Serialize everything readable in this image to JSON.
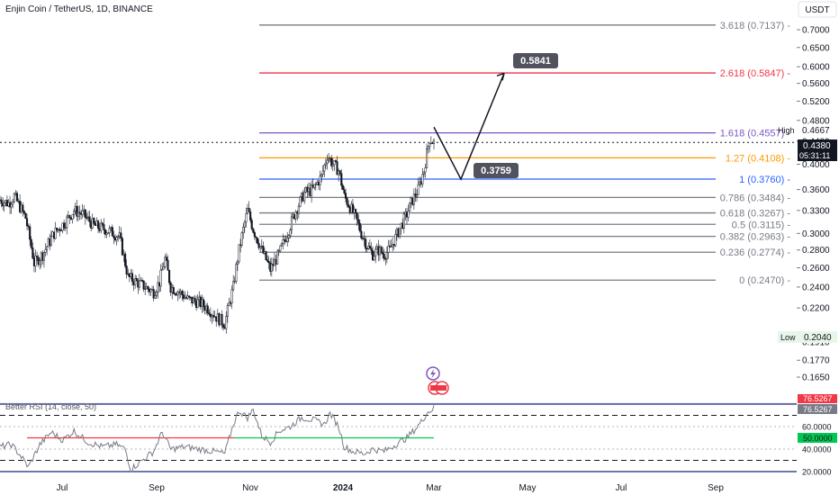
{
  "title": "Enjin Coin / TetherUS, 1D, BINANCE",
  "currency_button": "USDT",
  "price_axis": {
    "ticks": [
      "0.7000",
      "0.6500",
      "0.6000",
      "0.5600",
      "0.5200",
      "0.4800",
      "0.4400",
      "0.4000",
      "0.3600",
      "0.3300",
      "0.3000",
      "0.2800",
      "0.2600",
      "0.2400",
      "0.2200",
      "0.1910",
      "0.1770",
      "0.1650"
    ],
    "current_price": "0.4380",
    "countdown": "05:31:11",
    "high_label": "High",
    "high_value": "0.4667",
    "low_label": "Low",
    "low_value": "0.2040"
  },
  "time_axis": [
    "Jul",
    "Sep",
    "Nov",
    "2024",
    "Mar",
    "May",
    "Jul",
    "Sep"
  ],
  "fib_levels": [
    {
      "label": "3.618 (0.7137)",
      "price": 0.7137,
      "color": "#787b86"
    },
    {
      "label": "2.618 (0.5847)",
      "price": 0.5847,
      "color": "#f23645"
    },
    {
      "label": "1.618 (0.4557)",
      "price": 0.4557,
      "color": "#7e57c2"
    },
    {
      "label": "1.27 (0.4108)",
      "price": 0.4108,
      "color": "#ff9800"
    },
    {
      "label": "1 (0.3760)",
      "price": 0.376,
      "color": "#2962ff"
    },
    {
      "label": "0.786 (0.3484)",
      "price": 0.3484,
      "color": "#787b86"
    },
    {
      "label": "0.618 (0.3267)",
      "price": 0.3267,
      "color": "#787b86"
    },
    {
      "label": "0.5 (0.3115)",
      "price": 0.3115,
      "color": "#787b86"
    },
    {
      "label": "0.382 (0.2963)",
      "price": 0.2963,
      "color": "#787b86"
    },
    {
      "label": "0.236 (0.2774)",
      "price": 0.2774,
      "color": "#787b86"
    },
    {
      "label": "0 (0.2470)",
      "price": 0.247,
      "color": "#787b86"
    }
  ],
  "callouts": [
    {
      "label": "0.5841",
      "color": "#50535e"
    },
    {
      "label": "0.3759",
      "color": "#50535e"
    }
  ],
  "rsi": {
    "title": "Better RSI (14, close, 50)",
    "ticks": [
      "60.0000",
      "40.0000",
      "20.0000"
    ],
    "value_red": "76.5267",
    "value_gray": "76.5267",
    "value_green": "50.0000",
    "colors": {
      "line": "#787b86",
      "overbought": "#f23645",
      "midline": "#00c853",
      "bands": "#1a237e"
    }
  },
  "chart_data": {
    "type": "candlestick",
    "title": "Enjin Coin / TetherUS, 1D, BINANCE",
    "symbol": "ENJUSDT",
    "interval": "1D",
    "exchange": "BINANCE",
    "current_price": 0.438,
    "high": 0.4667,
    "low": 0.204,
    "price_scale": "log",
    "ohlc_path": [
      {
        "i": 0,
        "p": 0.345
      },
      {
        "i": 6,
        "p": 0.34
      },
      {
        "i": 10,
        "p": 0.35
      },
      {
        "i": 18,
        "p": 0.32
      },
      {
        "i": 24,
        "p": 0.265
      },
      {
        "i": 30,
        "p": 0.275
      },
      {
        "i": 38,
        "p": 0.3
      },
      {
        "i": 46,
        "p": 0.315
      },
      {
        "i": 52,
        "p": 0.33
      },
      {
        "i": 58,
        "p": 0.325
      },
      {
        "i": 66,
        "p": 0.31
      },
      {
        "i": 74,
        "p": 0.305
      },
      {
        "i": 80,
        "p": 0.3
      },
      {
        "i": 84,
        "p": 0.295
      },
      {
        "i": 90,
        "p": 0.25
      },
      {
        "i": 96,
        "p": 0.245
      },
      {
        "i": 102,
        "p": 0.24
      },
      {
        "i": 108,
        "p": 0.235
      },
      {
        "i": 112,
        "p": 0.245
      },
      {
        "i": 116,
        "p": 0.27
      },
      {
        "i": 120,
        "p": 0.24
      },
      {
        "i": 126,
        "p": 0.235
      },
      {
        "i": 132,
        "p": 0.228
      },
      {
        "i": 140,
        "p": 0.225
      },
      {
        "i": 146,
        "p": 0.22
      },
      {
        "i": 152,
        "p": 0.212
      },
      {
        "i": 158,
        "p": 0.206
      },
      {
        "i": 164,
        "p": 0.24
      },
      {
        "i": 168,
        "p": 0.28
      },
      {
        "i": 174,
        "p": 0.33
      },
      {
        "i": 178,
        "p": 0.305
      },
      {
        "i": 184,
        "p": 0.28
      },
      {
        "i": 190,
        "p": 0.258
      },
      {
        "i": 196,
        "p": 0.275
      },
      {
        "i": 202,
        "p": 0.3
      },
      {
        "i": 208,
        "p": 0.33
      },
      {
        "i": 214,
        "p": 0.355
      },
      {
        "i": 220,
        "p": 0.36
      },
      {
        "i": 226,
        "p": 0.38
      },
      {
        "i": 230,
        "p": 0.415
      },
      {
        "i": 234,
        "p": 0.4
      },
      {
        "i": 238,
        "p": 0.39
      },
      {
        "i": 242,
        "p": 0.35
      },
      {
        "i": 246,
        "p": 0.335
      },
      {
        "i": 250,
        "p": 0.32
      },
      {
        "i": 254,
        "p": 0.3
      },
      {
        "i": 258,
        "p": 0.285
      },
      {
        "i": 262,
        "p": 0.275
      },
      {
        "i": 266,
        "p": 0.28
      },
      {
        "i": 270,
        "p": 0.275
      },
      {
        "i": 274,
        "p": 0.28
      },
      {
        "i": 278,
        "p": 0.295
      },
      {
        "i": 282,
        "p": 0.31
      },
      {
        "i": 286,
        "p": 0.325
      },
      {
        "i": 290,
        "p": 0.345
      },
      {
        "i": 294,
        "p": 0.36
      },
      {
        "i": 298,
        "p": 0.39
      },
      {
        "i": 302,
        "p": 0.445
      },
      {
        "i": 305,
        "p": 0.438
      }
    ],
    "projection": [
      0.4667,
      0.3759,
      0.5841
    ],
    "rsi_path": [
      {
        "i": 0,
        "v": 42
      },
      {
        "i": 8,
        "v": 44
      },
      {
        "i": 14,
        "v": 35
      },
      {
        "i": 20,
        "v": 24
      },
      {
        "i": 28,
        "v": 44
      },
      {
        "i": 36,
        "v": 55
      },
      {
        "i": 44,
        "v": 48
      },
      {
        "i": 52,
        "v": 56
      },
      {
        "i": 62,
        "v": 46
      },
      {
        "i": 72,
        "v": 42
      },
      {
        "i": 82,
        "v": 44
      },
      {
        "i": 88,
        "v": 40
      },
      {
        "i": 92,
        "v": 22
      },
      {
        "i": 100,
        "v": 30
      },
      {
        "i": 108,
        "v": 38
      },
      {
        "i": 114,
        "v": 55
      },
      {
        "i": 120,
        "v": 40
      },
      {
        "i": 130,
        "v": 42
      },
      {
        "i": 140,
        "v": 40
      },
      {
        "i": 150,
        "v": 38
      },
      {
        "i": 158,
        "v": 36
      },
      {
        "i": 164,
        "v": 62
      },
      {
        "i": 168,
        "v": 74
      },
      {
        "i": 174,
        "v": 68
      },
      {
        "i": 178,
        "v": 75
      },
      {
        "i": 184,
        "v": 52
      },
      {
        "i": 190,
        "v": 46
      },
      {
        "i": 196,
        "v": 56
      },
      {
        "i": 204,
        "v": 60
      },
      {
        "i": 212,
        "v": 68
      },
      {
        "i": 220,
        "v": 66
      },
      {
        "i": 228,
        "v": 62
      },
      {
        "i": 232,
        "v": 72
      },
      {
        "i": 238,
        "v": 60
      },
      {
        "i": 242,
        "v": 42
      },
      {
        "i": 248,
        "v": 38
      },
      {
        "i": 256,
        "v": 36
      },
      {
        "i": 262,
        "v": 40
      },
      {
        "i": 270,
        "v": 38
      },
      {
        "i": 278,
        "v": 44
      },
      {
        "i": 286,
        "v": 50
      },
      {
        "i": 292,
        "v": 58
      },
      {
        "i": 296,
        "v": 64
      },
      {
        "i": 300,
        "v": 72
      },
      {
        "i": 305,
        "v": 76.5
      }
    ],
    "rsi_levels": {
      "overbought": 70,
      "upper_band": 68,
      "midline": 50,
      "lower_band": 30,
      "oversold": 25
    }
  }
}
